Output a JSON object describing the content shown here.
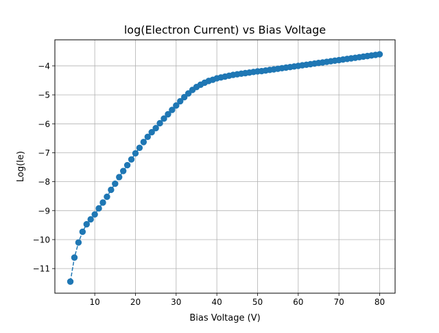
{
  "chart_data": {
    "type": "line",
    "title": "log(Electron Current) vs Bias Voltage",
    "xlabel": "Bias Voltage (V)",
    "ylabel": "Log(Ie)",
    "xlim": [
      0.2,
      83.8
    ],
    "ylim": [
      -11.85,
      -3.1
    ],
    "xticks": [
      10,
      20,
      30,
      40,
      50,
      60,
      70,
      80
    ],
    "yticks": [
      -11,
      -10,
      -9,
      -8,
      -7,
      -6,
      -5,
      -4
    ],
    "xtick_labels": [
      "10",
      "20",
      "30",
      "40",
      "50",
      "60",
      "70",
      "80"
    ],
    "ytick_labels": [
      "−11",
      "−10",
      "−9",
      "−8",
      "−7",
      "−6",
      "−5",
      "−4"
    ],
    "grid": true,
    "legend": "none",
    "line_style": "dashed",
    "marker": "circle",
    "color": "#1f77b4",
    "series": [
      {
        "x": [
          4,
          5,
          6,
          7,
          8,
          9,
          10,
          11,
          12,
          13,
          14,
          15,
          16,
          17,
          18,
          19,
          20,
          21,
          22,
          23,
          24,
          25,
          26,
          27,
          28,
          29,
          30,
          31,
          32,
          33,
          34,
          35,
          36,
          37,
          38,
          39,
          40,
          41,
          42,
          43,
          44,
          45,
          46,
          47,
          48,
          49,
          50,
          51,
          52,
          53,
          54,
          55,
          56,
          57,
          58,
          59,
          60,
          61,
          62,
          63,
          64,
          65,
          66,
          67,
          68,
          69,
          70,
          71,
          72,
          73,
          74,
          75,
          76,
          77,
          78,
          79,
          80
        ],
        "y": [
          -11.45,
          -10.62,
          -10.1,
          -9.73,
          -9.47,
          -9.3,
          -9.13,
          -8.92,
          -8.72,
          -8.52,
          -8.28,
          -8.07,
          -7.84,
          -7.63,
          -7.43,
          -7.23,
          -7.02,
          -6.83,
          -6.63,
          -6.45,
          -6.29,
          -6.15,
          -5.98,
          -5.82,
          -5.67,
          -5.52,
          -5.37,
          -5.22,
          -5.08,
          -4.95,
          -4.83,
          -4.73,
          -4.65,
          -4.58,
          -4.52,
          -4.48,
          -4.43,
          -4.4,
          -4.37,
          -4.34,
          -4.31,
          -4.29,
          -4.27,
          -4.25,
          -4.23,
          -4.21,
          -4.19,
          -4.18,
          -4.16,
          -4.14,
          -4.12,
          -4.1,
          -4.08,
          -4.06,
          -4.04,
          -4.02,
          -4.0,
          -3.98,
          -3.96,
          -3.94,
          -3.92,
          -3.9,
          -3.88,
          -3.86,
          -3.84,
          -3.82,
          -3.8,
          -3.78,
          -3.76,
          -3.74,
          -3.72,
          -3.7,
          -3.68,
          -3.66,
          -3.64,
          -3.62,
          -3.6
        ]
      }
    ]
  }
}
